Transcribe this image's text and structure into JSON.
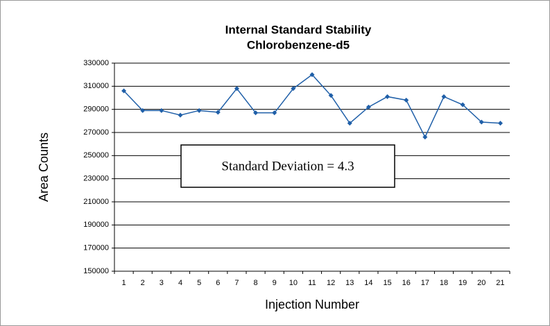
{
  "chart_data": {
    "type": "line",
    "title": "Internal Standard Stability",
    "subtitle": "Chlorobenzene-d5",
    "x_label": "Injection Number",
    "y_label": "Area Counts",
    "annotation": "Standard Deviation = 4.3",
    "categories": [
      "1",
      "2",
      "3",
      "4",
      "5",
      "6",
      "7",
      "8",
      "9",
      "10",
      "11",
      "12",
      "13",
      "14",
      "15",
      "16",
      "17",
      "18",
      "19",
      "20",
      "21"
    ],
    "series": [
      {
        "name": "Chlorobenzene-d5",
        "color": "#1f5fa8",
        "values": [
          306000,
          289000,
          289000,
          285000,
          289000,
          287500,
          308000,
          287000,
          287000,
          308000,
          320000,
          302000,
          278000,
          292000,
          301000,
          298000,
          266000,
          301000,
          294000,
          279000,
          278000
        ]
      }
    ],
    "ylim": [
      150000,
      330000
    ],
    "yticks": [
      150000,
      170000,
      190000,
      210000,
      230000,
      250000,
      270000,
      290000,
      310000,
      330000
    ],
    "grid": true
  }
}
